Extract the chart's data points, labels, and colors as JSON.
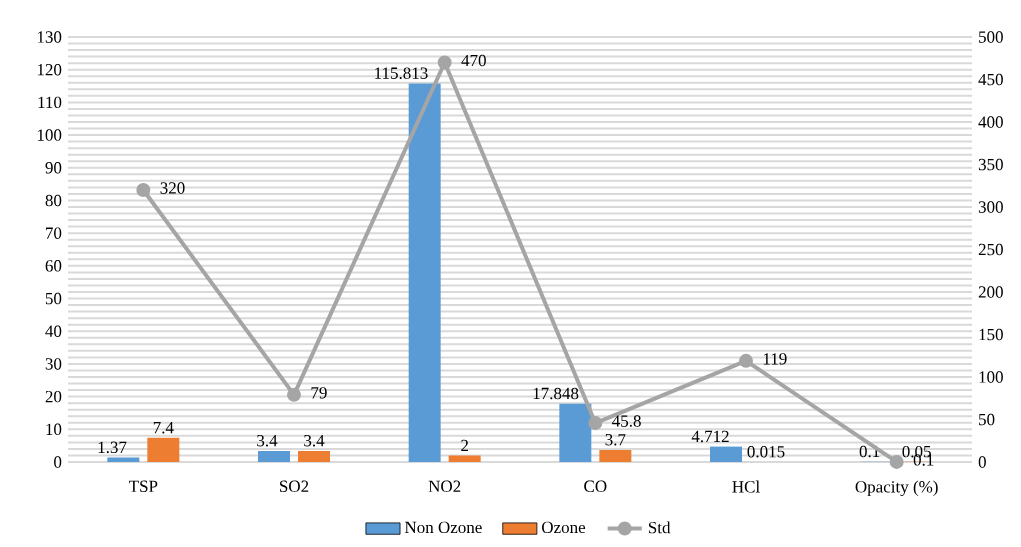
{
  "chart_data": {
    "type": "bar",
    "categories": [
      "TSP",
      "SO2",
      "NO2",
      "CO",
      "HCl",
      "Opacity (%)"
    ],
    "series": [
      {
        "name": "Non Ozone",
        "color": "#5b9bd5",
        "values": [
          1.37,
          3.4,
          115.813,
          17.848,
          4.712,
          0.1
        ]
      },
      {
        "name": "Ozone",
        "color": "#ed7d31",
        "values": [
          7.4,
          3.4,
          2,
          3.7,
          0.015,
          0.05
        ]
      },
      {
        "name": "Std",
        "color": "#a5a5a5",
        "type": "line",
        "axis": "y2",
        "marker": "circle",
        "values": [
          320,
          79,
          470,
          45.8,
          119,
          0.1
        ]
      }
    ],
    "ylim": [
      0,
      130
    ],
    "yticks": [
      0,
      10,
      20,
      30,
      40,
      50,
      60,
      70,
      80,
      90,
      100,
      110,
      120,
      130
    ],
    "y2lim": [
      0,
      500
    ],
    "y2ticks": [
      0,
      50,
      100,
      150,
      200,
      250,
      300,
      350,
      400,
      450,
      500
    ],
    "grid": true,
    "legend": "bottom",
    "data_labels": true
  }
}
